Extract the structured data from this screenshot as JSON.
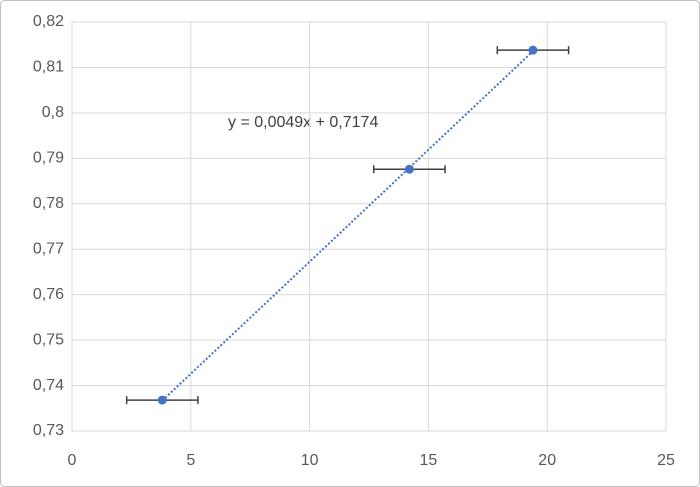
{
  "chart_data": {
    "type": "scatter",
    "annotation": "y = 0,0049x + 0,7174",
    "series": [
      {
        "color": "#4472c4",
        "x": [
          3.8,
          14.2,
          19.4
        ],
        "values": [
          0.7368,
          0.7876,
          0.8138
        ],
        "x_error": [
          1.5,
          1.5,
          1.5
        ]
      }
    ],
    "trendline": {
      "color": "#4472c4",
      "style": "dotted"
    },
    "error_bar_color": "#404040",
    "xlim": [
      0,
      25
    ],
    "xticks": [
      0,
      5,
      10,
      15,
      20,
      25
    ],
    "ylim": [
      0.73,
      0.82
    ],
    "yticks": [
      {
        "value": 0.73,
        "label": "0,73"
      },
      {
        "value": 0.74,
        "label": "0,74"
      },
      {
        "value": 0.75,
        "label": "0,75"
      },
      {
        "value": 0.76,
        "label": "0,76"
      },
      {
        "value": 0.77,
        "label": "0,77"
      },
      {
        "value": 0.78,
        "label": "0,78"
      },
      {
        "value": 0.79,
        "label": "0,79"
      },
      {
        "value": 0.8,
        "label": "0,8"
      },
      {
        "value": 0.81,
        "label": "0,81"
      },
      {
        "value": 0.82,
        "label": "0,82"
      }
    ],
    "grid": true
  }
}
